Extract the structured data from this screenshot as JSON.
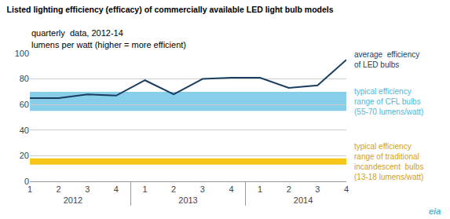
{
  "chart_data": {
    "type": "line",
    "title": "Listed lighting efficiency (efficacy) of commercially available LED light bulb models",
    "subtitle": "quarterly  data, 2012-14",
    "ylabel": "lumens per watt (higher = more efficient)",
    "categories": [
      [
        "2012",
        "1"
      ],
      [
        "2012",
        "2"
      ],
      [
        "2012",
        "3"
      ],
      [
        "2012",
        "4"
      ],
      [
        "2013",
        "1"
      ],
      [
        "2013",
        "2"
      ],
      [
        "2013",
        "3"
      ],
      [
        "2013",
        "4"
      ],
      [
        "2014",
        "1"
      ],
      [
        "2014",
        "2"
      ],
      [
        "2014",
        "3"
      ],
      [
        "2014",
        "4"
      ]
    ],
    "values": [
      65,
      65,
      68,
      67,
      79,
      68,
      80,
      81,
      81,
      73,
      75,
      95
    ],
    "color": "#1B3D5F",
    "line_annotation": "average  efficiency\nof LED bulbs",
    "line_annotation_color": "#1B3D5F",
    "bands": [
      {
        "low": 55,
        "high": 70,
        "color": "#87CEEB",
        "label": "typical efficiency\nrange of CFL bulbs\n(55-70 lumens/watt)",
        "label_color": "#4EB8D8"
      },
      {
        "low": 13,
        "high": 18,
        "color": "#F5C518",
        "label": "typical efficiency\nrange of traditional\nincandescent  bulbs\n(13-18 lumens/watt)",
        "label_color": "#D4A017"
      }
    ],
    "logo": {
      "text": "eia",
      "color": "#4EB8D8"
    },
    "ylim": [
      0,
      100
    ],
    "yticks": [
      0,
      20,
      40,
      60,
      80,
      100
    ],
    "grid": true,
    "grid_color": "#cccccc"
  }
}
